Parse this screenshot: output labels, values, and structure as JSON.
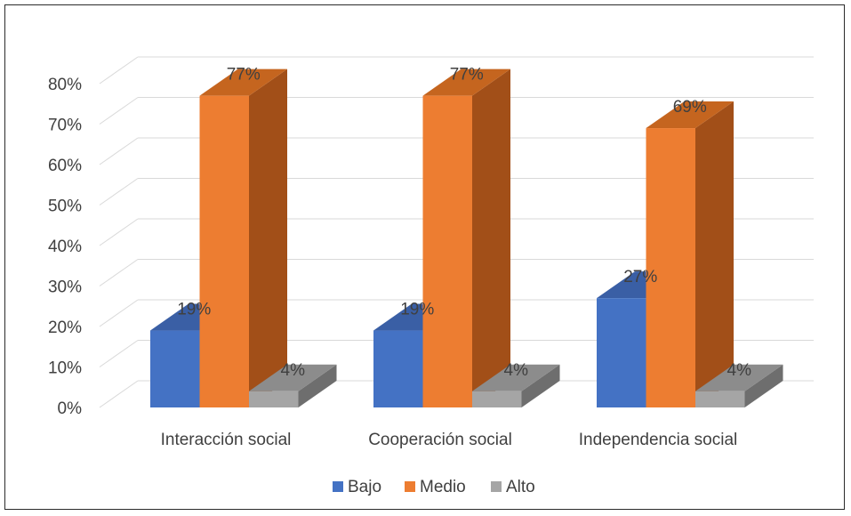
{
  "chart_data": {
    "type": "bar",
    "style": "3d-clustered-column",
    "categories": [
      "Interacción social",
      "Cooperación social",
      "Independencia social"
    ],
    "series": [
      {
        "name": "Bajo",
        "values": [
          19,
          19,
          27
        ],
        "labels": [
          "19%",
          "19%",
          "27%"
        ],
        "color": "#4472C4",
        "top": "#3A5FA5",
        "side": "#2F5496"
      },
      {
        "name": "Medio",
        "values": [
          77,
          77,
          69
        ],
        "labels": [
          "77%",
          "77%",
          "69%"
        ],
        "color": "#ED7D31",
        "top": "#C5651F",
        "side": "#A24F18"
      },
      {
        "name": "Alto",
        "values": [
          4,
          4,
          4
        ],
        "labels": [
          "4%",
          "4%",
          "4%"
        ],
        "color": "#A5A5A5",
        "top": "#8C8C8C",
        "side": "#6E6E6E"
      }
    ],
    "yticks": [
      "0%",
      "10%",
      "20%",
      "30%",
      "40%",
      "50%",
      "60%",
      "70%",
      "80%"
    ],
    "ylim": [
      0,
      80
    ],
    "grid": true,
    "legend": "bottom"
  }
}
